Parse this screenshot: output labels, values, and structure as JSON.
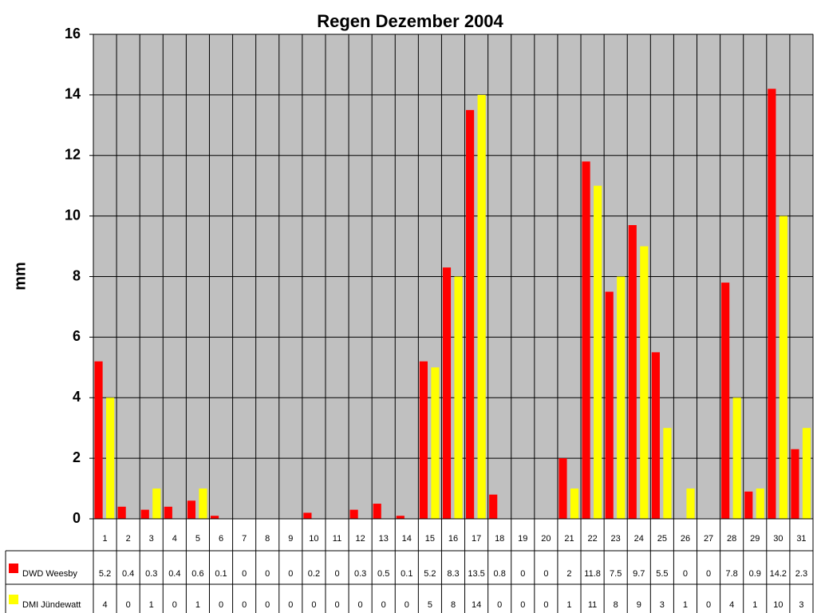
{
  "chart_data": {
    "type": "bar",
    "title": "Regen Dezember 2004",
    "y_label": "mm",
    "categories": [
      "1",
      "2",
      "3",
      "4",
      "5",
      "6",
      "7",
      "8",
      "9",
      "10",
      "11",
      "12",
      "13",
      "14",
      "15",
      "16",
      "17",
      "18",
      "19",
      "20",
      "21",
      "22",
      "23",
      "24",
      "25",
      "26",
      "27",
      "28",
      "29",
      "30",
      "31"
    ],
    "series": [
      {
        "name": "DWD Weesby",
        "color": "#ff0000",
        "values": [
          5.2,
          0.4,
          0.3,
          0.4,
          0.6,
          0.1,
          0,
          0,
          0,
          0.2,
          0,
          0.3,
          0.5,
          0.1,
          5.2,
          8.3,
          13.5,
          0.8,
          0,
          0,
          2,
          11.8,
          7.5,
          9.7,
          5.5,
          0,
          0,
          7.8,
          0.9,
          14.2,
          2.3
        ]
      },
      {
        "name": "DMI Jündewatt",
        "color": "#ffff00",
        "values": [
          4,
          0,
          1,
          0,
          1,
          0,
          0,
          0,
          0,
          0,
          0,
          0,
          0,
          0,
          5,
          8,
          14,
          0,
          0,
          0,
          1,
          11,
          8,
          9,
          3,
          1,
          0,
          4,
          1,
          10,
          3
        ]
      }
    ],
    "ylim": [
      0,
      16
    ],
    "yticks": [
      0,
      2,
      4,
      6,
      8,
      10,
      12,
      14,
      16
    ],
    "grid": true,
    "data_table": true
  }
}
